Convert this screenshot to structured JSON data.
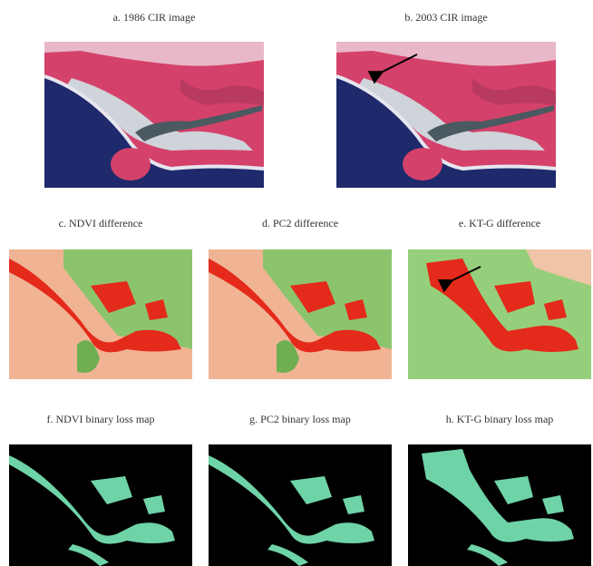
{
  "panels": [
    {
      "caption": "a. 1986 CIR image"
    },
    {
      "caption": "b. 2003 CIR image"
    },
    {
      "caption": "c. NDVI difference"
    },
    {
      "caption": "d. PC2 difference"
    },
    {
      "caption": "e. KT-G difference"
    },
    {
      "caption": "f. NDVI binary loss map"
    },
    {
      "caption": "g. PC2 binary loss map"
    },
    {
      "caption": "h. KT-G binary loss map"
    }
  ]
}
